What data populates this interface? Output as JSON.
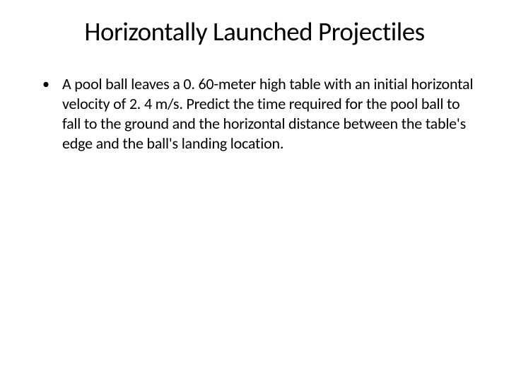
{
  "slide": {
    "title": "Horizontally Launched Projectiles",
    "bullet": {
      "marker": "•",
      "text": "A pool ball leaves a 0. 60-meter high table with an initial horizontal velocity of 2. 4 m/s. Predict the time required for the pool ball to fall to the ground and the horizontal distance between the table's edge and the ball's landing location."
    }
  },
  "styles": {
    "background_color": "#ffffff",
    "title_fontsize": 37,
    "title_color": "#000000",
    "title_weight": 400,
    "body_fontsize": 22,
    "body_color": "#000000",
    "bullet_marker_fontsize": 20,
    "font_family": "Calibri"
  }
}
